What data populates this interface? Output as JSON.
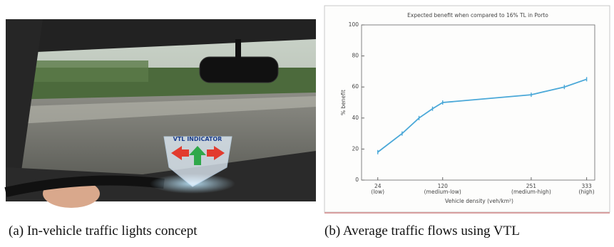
{
  "photo": {
    "label": "VTL INDICATOR"
  },
  "captions": [
    "(a) In-vehicle traffic lights concept",
    "(b) Average traffic flows using VTL"
  ],
  "chart_data": {
    "type": "line",
    "title": "Expected benefit when compared to 16% TL in Porto",
    "xlabel": "Vehicle density (veh/km²)",
    "ylabel": "% benefit",
    "x": [
      24,
      60,
      85,
      105,
      120,
      251,
      300,
      333
    ],
    "values": [
      18,
      30,
      40,
      46,
      50,
      55,
      60,
      65
    ],
    "color": "#4aa8d8",
    "xlim": [
      0,
      345
    ],
    "ylim": [
      0,
      100
    ],
    "xticks": [
      24,
      120,
      251,
      333
    ],
    "xtick_sublabels": [
      "(low)",
      "(medium-low)",
      "(medium-high)",
      "(high)"
    ],
    "yticks": [
      0,
      20,
      40,
      60,
      80,
      100
    ]
  }
}
